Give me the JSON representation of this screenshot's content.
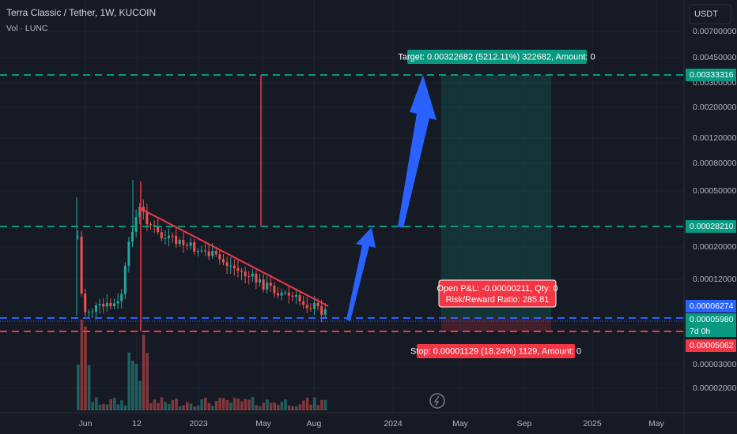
{
  "header": {
    "title": "Terra Classic / Tether, 1W, KUCOIN",
    "volume": "Vol · LUNC"
  },
  "price_axis": {
    "currency": "USDT",
    "labels": [
      "0.00700000",
      "0.00450000",
      "0.00300000",
      "0.00200000",
      "0.00120000",
      "0.00080000",
      "0.00050000",
      "0.00020000",
      "0.00012000",
      "0.00003000",
      "0.00002000"
    ],
    "badges": [
      "0.00333316",
      "0.00028210",
      "0.00006274",
      "0.00005980",
      "0.00005062"
    ],
    "countdown": "7d 0h"
  },
  "time_axis": {
    "labels": [
      "Jun",
      "12",
      "2023",
      "May",
      "Aug",
      "2024",
      "May",
      "Sep",
      "2025",
      "May"
    ]
  },
  "annotations": {
    "target": "Target: 0.00322682 (5212.11%) 322682, Amount: 0",
    "pnl": "Open P&L: -0.00000211, Qty: 0",
    "ratio": "Risk/Reward Ratio: 285.81",
    "stop": "Stop: 0.00001129 (18.24%) 1129, Amount: 0"
  }
}
